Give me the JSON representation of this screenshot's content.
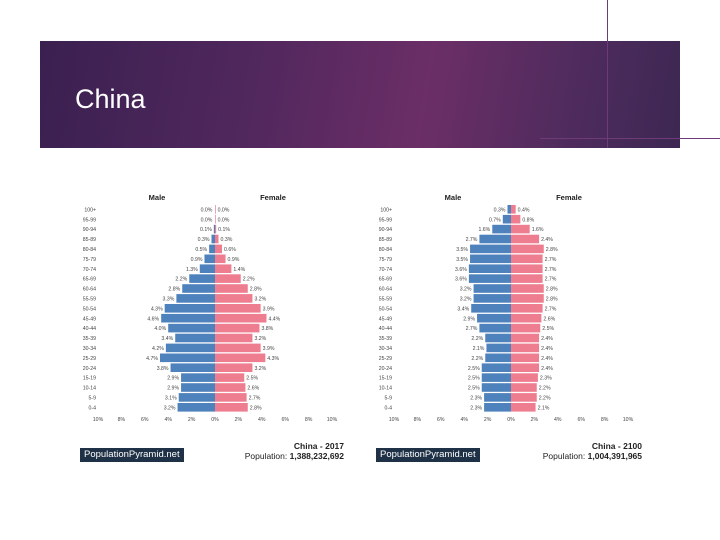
{
  "slide": {
    "title": "China",
    "colors": {
      "banner": "#512a5f",
      "male": "#4e82bc",
      "female": "#ee7d90"
    }
  },
  "chart_data": [
    {
      "type": "bar",
      "subtype": "population-pyramid",
      "title": "China - 2017",
      "population_label": "Population:",
      "population_value": "1,388,232,692",
      "logo_text": "PopulationPyramid.net",
      "legend": [
        "Male",
        "Female"
      ],
      "categories": [
        "100+",
        "95-99",
        "90-94",
        "85-89",
        "80-84",
        "75-79",
        "70-74",
        "65-69",
        "60-64",
        "55-59",
        "50-54",
        "45-49",
        "40-44",
        "35-39",
        "30-34",
        "25-29",
        "20-24",
        "15-19",
        "10-14",
        "5-9",
        "0-4"
      ],
      "series": [
        {
          "name": "Male",
          "values": [
            0.0,
            0.0,
            0.1,
            0.3,
            0.5,
            0.9,
            1.3,
            2.2,
            2.8,
            3.3,
            4.3,
            4.6,
            4.0,
            3.4,
            4.2,
            4.7,
            3.8,
            2.9,
            2.9,
            3.1,
            3.2
          ],
          "labels": [
            "0.0%",
            "0.0%",
            "0.1%",
            "0.3%",
            "0.5%",
            "0.9%",
            "1.3%",
            "2.2%",
            "2.8%",
            "3.3%",
            "4.3%",
            "4.6%",
            "4.0%",
            "3.4%",
            "4.2%",
            "4.7%",
            "3.8%",
            "2.9%",
            "2.9%",
            "3.1%",
            "3.2%"
          ]
        },
        {
          "name": "Female",
          "values": [
            0.0,
            0.0,
            0.1,
            0.3,
            0.6,
            0.9,
            1.4,
            2.2,
            2.8,
            3.2,
            3.9,
            4.4,
            3.8,
            3.2,
            3.9,
            4.3,
            3.2,
            2.5,
            2.6,
            2.7,
            2.8
          ],
          "labels": [
            "0.0%",
            "0.0%",
            "0.1%",
            "0.3%",
            "0.6%",
            "0.9%",
            "1.4%",
            "2.2%",
            "2.8%",
            "3.2%",
            "3.9%",
            "4.4%",
            "3.8%",
            "3.2%",
            "3.9%",
            "4.3%",
            "3.2%",
            "2.5%",
            "2.6%",
            "2.7%",
            "2.8%"
          ]
        }
      ],
      "x_ticks": [
        "10%",
        "8%",
        "6%",
        "4%",
        "2%",
        "0%",
        "2%",
        "4%",
        "6%",
        "8%",
        "10%"
      ],
      "xlim": [
        -10,
        10
      ]
    },
    {
      "type": "bar",
      "subtype": "population-pyramid",
      "title": "China - 2100",
      "population_label": "Population:",
      "population_value": "1,004,391,965",
      "logo_text": "PopulationPyramid.net",
      "legend": [
        "Male",
        "Female"
      ],
      "categories": [
        "100+",
        "95-99",
        "90-94",
        "85-89",
        "80-84",
        "75-79",
        "70-74",
        "65-69",
        "60-64",
        "55-59",
        "50-54",
        "45-49",
        "40-44",
        "35-39",
        "30-34",
        "25-29",
        "20-24",
        "15-19",
        "10-14",
        "5-9",
        "0-4"
      ],
      "series": [
        {
          "name": "Male",
          "values": [
            0.3,
            0.7,
            1.6,
            2.7,
            3.5,
            3.5,
            3.6,
            3.6,
            3.2,
            3.2,
            3.4,
            2.9,
            2.7,
            2.2,
            2.1,
            2.2,
            2.5,
            2.5,
            2.5,
            2.3,
            2.3
          ],
          "labels": [
            "0.3%",
            "0.7%",
            "1.6%",
            "2.7%",
            "3.5%",
            "3.5%",
            "3.6%",
            "3.6%",
            "3.2%",
            "3.2%",
            "3.4%",
            "2.9%",
            "2.7%",
            "2.2%",
            "2.1%",
            "2.2%",
            "2.5%",
            "2.5%",
            "2.5%",
            "2.3%",
            "2.3%"
          ]
        },
        {
          "name": "Female",
          "values": [
            0.4,
            0.8,
            1.6,
            2.4,
            2.8,
            2.7,
            2.7,
            2.7,
            2.8,
            2.8,
            2.7,
            2.6,
            2.5,
            2.4,
            2.4,
            2.4,
            2.4,
            2.3,
            2.2,
            2.2,
            2.1
          ],
          "labels": [
            "0.4%",
            "0.8%",
            "1.6%",
            "2.4%",
            "2.8%",
            "2.7%",
            "2.7%",
            "2.7%",
            "2.8%",
            "2.8%",
            "2.7%",
            "2.6%",
            "2.5%",
            "2.4%",
            "2.4%",
            "2.4%",
            "2.4%",
            "2.3%",
            "2.2%",
            "2.2%",
            "2.1%"
          ]
        }
      ],
      "x_ticks": [
        "10%",
        "8%",
        "6%",
        "4%",
        "2%",
        "0%",
        "2%",
        "4%",
        "6%",
        "8%",
        "10%"
      ],
      "xlim": [
        -10,
        10
      ]
    }
  ]
}
